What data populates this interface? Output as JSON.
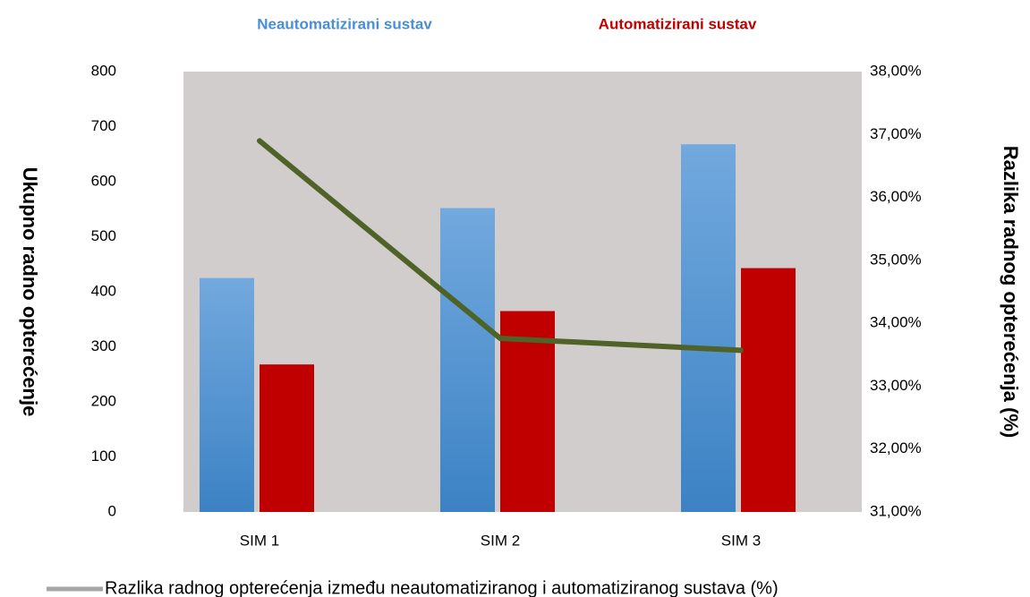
{
  "chart_data": {
    "type": "bar-line",
    "categories": [
      "SIM 1",
      "SIM 2",
      "SIM 3"
    ],
    "series": [
      {
        "name": "Neautomatizirani sustav",
        "color": "#4a8fd2",
        "values": [
          425,
          552,
          668
        ]
      },
      {
        "name": "Automatizirani sustav",
        "color": "#c00000",
        "values": [
          268,
          365,
          443
        ]
      },
      {
        "name": "Razlika radnog opterećenja između neautomatiziranog i automatiziranog sustava (%)",
        "color": "#4f6228",
        "values": [
          36.9,
          33.76,
          33.57
        ],
        "axis": "y2"
      }
    ],
    "ylabel": "Ukupno radno opterećenje",
    "y2label": "Razlika radnog opterećenja (%)",
    "ylim": [
      0,
      800
    ],
    "yticks": [
      0,
      100,
      200,
      300,
      400,
      500,
      600,
      700,
      800
    ],
    "y2lim": [
      31,
      38
    ],
    "y2ticks": [
      {
        "value": 31,
        "label": "31,00%"
      },
      {
        "value": 32,
        "label": "32,00%"
      },
      {
        "value": 33,
        "label": "33,00%"
      },
      {
        "value": 34,
        "label": "34,00%"
      },
      {
        "value": 35,
        "label": "35,00%"
      },
      {
        "value": 36,
        "label": "36,00%"
      },
      {
        "value": 37,
        "label": "37,00%"
      },
      {
        "value": 38,
        "label": "38,00%"
      }
    ]
  }
}
